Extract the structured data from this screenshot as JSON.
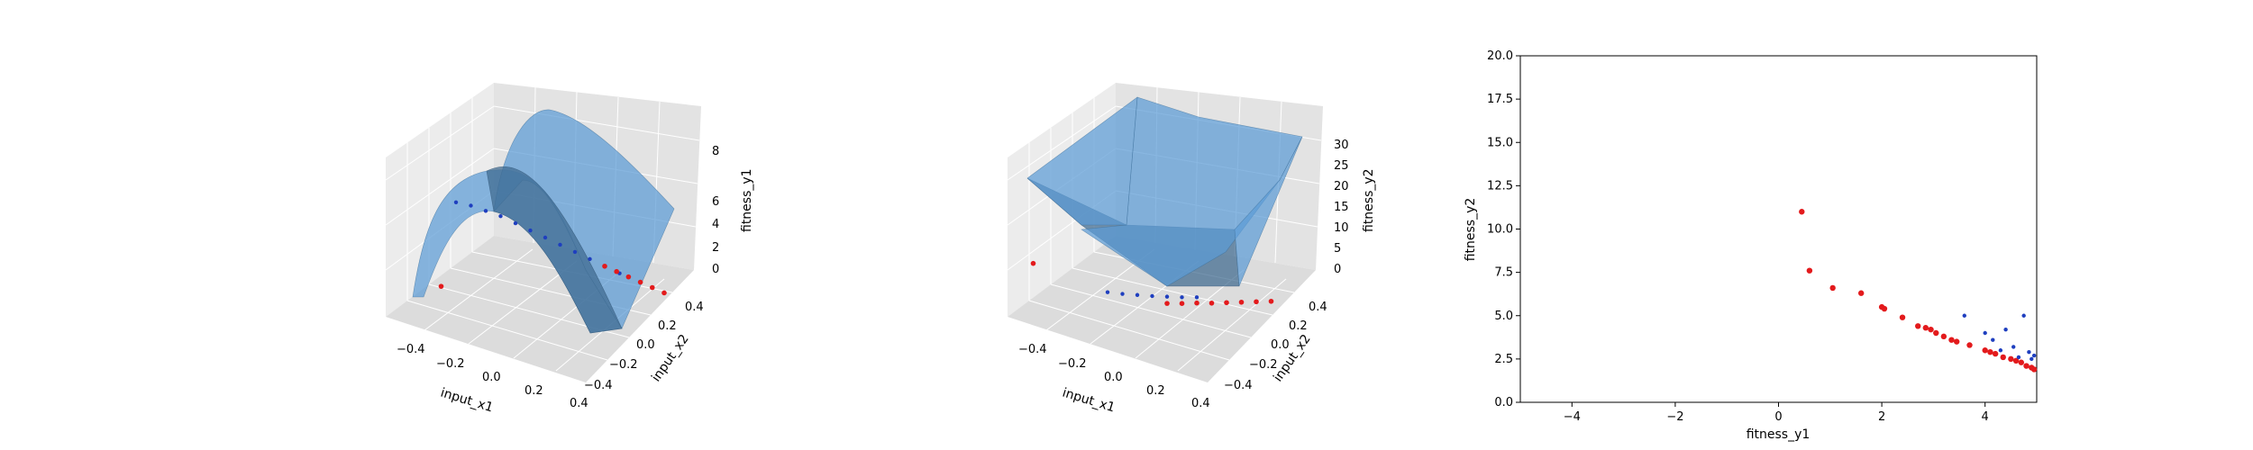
{
  "chart_data": [
    {
      "type": "scatter",
      "subtype": "surface-3d",
      "xlabel": "input_x1",
      "ylabel": "input_x2",
      "zlabel": "fitness_y1",
      "x_ticks": [
        "−0.4",
        "−0.2",
        "0.0",
        "0.2",
        "0.4"
      ],
      "y_ticks": [
        "−0.4",
        "−0.2",
        "0.0",
        "0.2",
        "0.4"
      ],
      "z_ticks": [
        "0",
        "2",
        "4",
        "6",
        "8"
      ],
      "xlim": [
        -0.5,
        0.5
      ],
      "ylim": [
        -0.5,
        0.5
      ],
      "zlim": [
        0,
        9
      ],
      "series": [
        {
          "color": "#1f3fbf",
          "values": [
            [
              -0.3,
              -0.3,
              5.6
            ],
            [
              -0.25,
              -0.25,
              5.4
            ],
            [
              -0.2,
              -0.2,
              5.1
            ],
            [
              -0.15,
              -0.15,
              4.8
            ],
            [
              -0.1,
              -0.1,
              4.4
            ],
            [
              -0.05,
              -0.05,
              4.0
            ],
            [
              0.0,
              0.0,
              3.6
            ],
            [
              0.05,
              0.05,
              3.2
            ],
            [
              0.1,
              0.1,
              2.8
            ],
            [
              0.15,
              0.15,
              2.4
            ],
            [
              0.2,
              0.2,
              2.0
            ],
            [
              0.25,
              0.25,
              1.6
            ]
          ]
        },
        {
          "color": "#e31a1c",
          "values": [
            [
              0.2,
              0.2,
              2.0
            ],
            [
              0.24,
              0.24,
              1.7
            ],
            [
              0.28,
              0.28,
              1.4
            ],
            [
              0.32,
              0.32,
              1.1
            ],
            [
              0.36,
              0.36,
              0.8
            ],
            [
              0.4,
              0.4,
              0.5
            ],
            [
              -0.35,
              -0.35,
              1.2
            ]
          ]
        }
      ]
    },
    {
      "type": "scatter",
      "subtype": "surface-3d",
      "xlabel": "input_x1",
      "ylabel": "input_x2",
      "zlabel": "fitness_y2",
      "x_ticks": [
        "−0.4",
        "−0.2",
        "0.0",
        "0.2",
        "0.4"
      ],
      "y_ticks": [
        "−0.4",
        "−0.2",
        "0.0",
        "0.2",
        "0.4"
      ],
      "z_ticks": [
        "0",
        "5",
        "10",
        "15",
        "20",
        "25",
        "30"
      ],
      "xlim": [
        -0.5,
        0.5
      ],
      "ylim": [
        -0.5,
        0.5
      ],
      "zlim": [
        0,
        33
      ],
      "series": [
        {
          "color": "#1f3fbf",
          "values": [
            [
              -0.2,
              -0.2,
              3.0
            ],
            [
              -0.15,
              -0.15,
              2.6
            ],
            [
              -0.1,
              -0.1,
              2.3
            ],
            [
              -0.05,
              -0.05,
              2.0
            ],
            [
              0.0,
              0.0,
              1.8
            ],
            [
              0.05,
              0.05,
              1.6
            ],
            [
              0.1,
              0.1,
              1.5
            ]
          ]
        },
        {
          "color": "#e31a1c",
          "values": [
            [
              0.0,
              0.0,
              0.5
            ],
            [
              0.05,
              0.05,
              0.4
            ],
            [
              0.1,
              0.1,
              0.4
            ],
            [
              0.15,
              0.15,
              0.3
            ],
            [
              0.2,
              0.2,
              0.3
            ],
            [
              0.25,
              0.25,
              0.3
            ],
            [
              0.3,
              0.3,
              0.3
            ],
            [
              0.35,
              0.35,
              0.3
            ],
            [
              -0.45,
              -0.45,
              9.0
            ]
          ]
        }
      ]
    },
    {
      "type": "scatter",
      "xlabel": "fitness_y1",
      "ylabel": "fitness_y2",
      "xlim": [
        -5,
        5
      ],
      "ylim": [
        0,
        20
      ],
      "x_ticks": [
        "−4",
        "−2",
        "0",
        "2",
        "4"
      ],
      "y_ticks": [
        "0.0",
        "2.5",
        "5.0",
        "7.5",
        "10.0",
        "12.5",
        "15.0",
        "17.5",
        "20.0"
      ],
      "series": [
        {
          "color": "#e31a1c",
          "values": [
            [
              0.45,
              11.0
            ],
            [
              0.6,
              7.6
            ],
            [
              1.05,
              6.6
            ],
            [
              1.6,
              6.3
            ],
            [
              2.0,
              5.5
            ],
            [
              2.05,
              5.4
            ],
            [
              2.4,
              4.9
            ],
            [
              2.7,
              4.4
            ],
            [
              2.85,
              4.3
            ],
            [
              2.95,
              4.2
            ],
            [
              3.05,
              4.0
            ],
            [
              3.2,
              3.8
            ],
            [
              3.35,
              3.6
            ],
            [
              3.45,
              3.5
            ],
            [
              3.7,
              3.3
            ],
            [
              4.0,
              3.0
            ],
            [
              4.1,
              2.9
            ],
            [
              4.2,
              2.8
            ],
            [
              4.35,
              2.6
            ],
            [
              4.5,
              2.5
            ],
            [
              4.6,
              2.4
            ],
            [
              4.7,
              2.3
            ],
            [
              4.8,
              2.1
            ],
            [
              4.9,
              2.0
            ],
            [
              4.95,
              1.9
            ]
          ]
        },
        {
          "color": "#1f3fbf",
          "values": [
            [
              3.6,
              5.0
            ],
            [
              4.0,
              4.0
            ],
            [
              4.15,
              3.6
            ],
            [
              4.4,
              4.2
            ],
            [
              4.55,
              3.2
            ],
            [
              4.75,
              5.0
            ],
            [
              4.85,
              2.9
            ],
            [
              4.95,
              2.7
            ],
            [
              4.9,
              2.5
            ],
            [
              4.65,
              2.6
            ],
            [
              4.3,
              3.0
            ]
          ]
        }
      ]
    }
  ]
}
